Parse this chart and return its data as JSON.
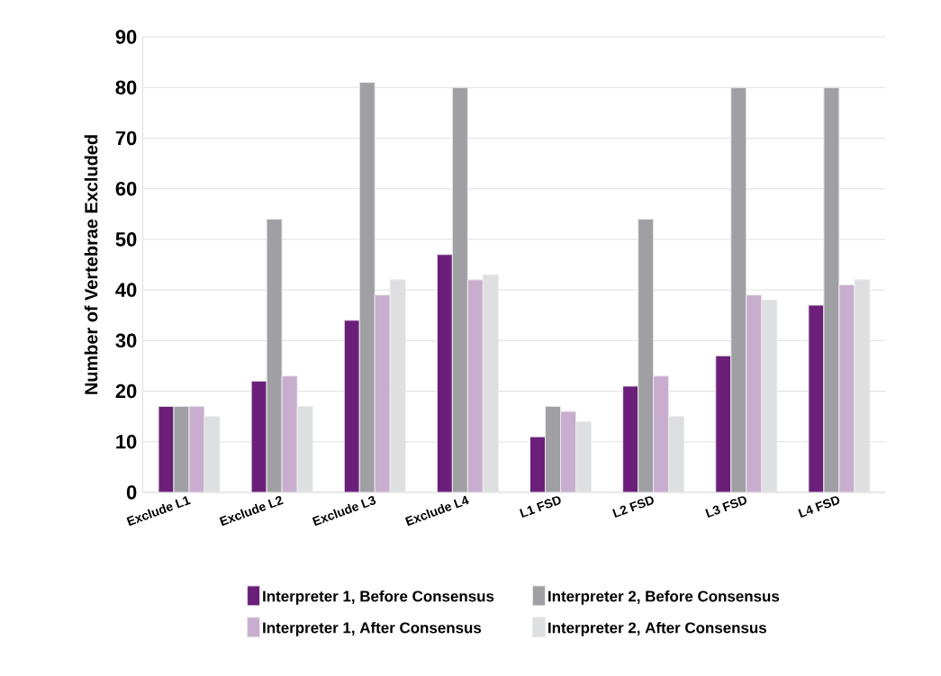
{
  "chart_data": {
    "type": "bar",
    "ylabel": "Number of Vertebrae Excluded",
    "categories": [
      "Exclude L1",
      "Exclude L2",
      "Exclude L3",
      "Exclude L4",
      "L1 FSD",
      "L2 FSD",
      "L3 FSD",
      "L4 FSD"
    ],
    "series": [
      {
        "name": "Interpreter 1, Before Consensus",
        "color": "#6b1f7a",
        "values": [
          17,
          22,
          34,
          47,
          11,
          21,
          27,
          37
        ]
      },
      {
        "name": "Interpreter 2, Before Consensus",
        "color": "#a09fa4",
        "values": [
          17,
          54,
          81,
          80,
          17,
          54,
          80,
          80
        ]
      },
      {
        "name": "Interpreter 1, After Consensus",
        "color": "#c9adcf",
        "values": [
          17,
          23,
          39,
          42,
          16,
          23,
          39,
          41
        ]
      },
      {
        "name": "Interpreter 2, After Consensus",
        "color": "#dedfe1",
        "values": [
          15,
          17,
          42,
          43,
          14,
          15,
          38,
          42
        ]
      }
    ],
    "ylim": [
      0,
      90
    ],
    "yticks": [
      0,
      10,
      20,
      30,
      40,
      50,
      60,
      70,
      80,
      90
    ],
    "grid": "y",
    "legend": "bottom"
  }
}
